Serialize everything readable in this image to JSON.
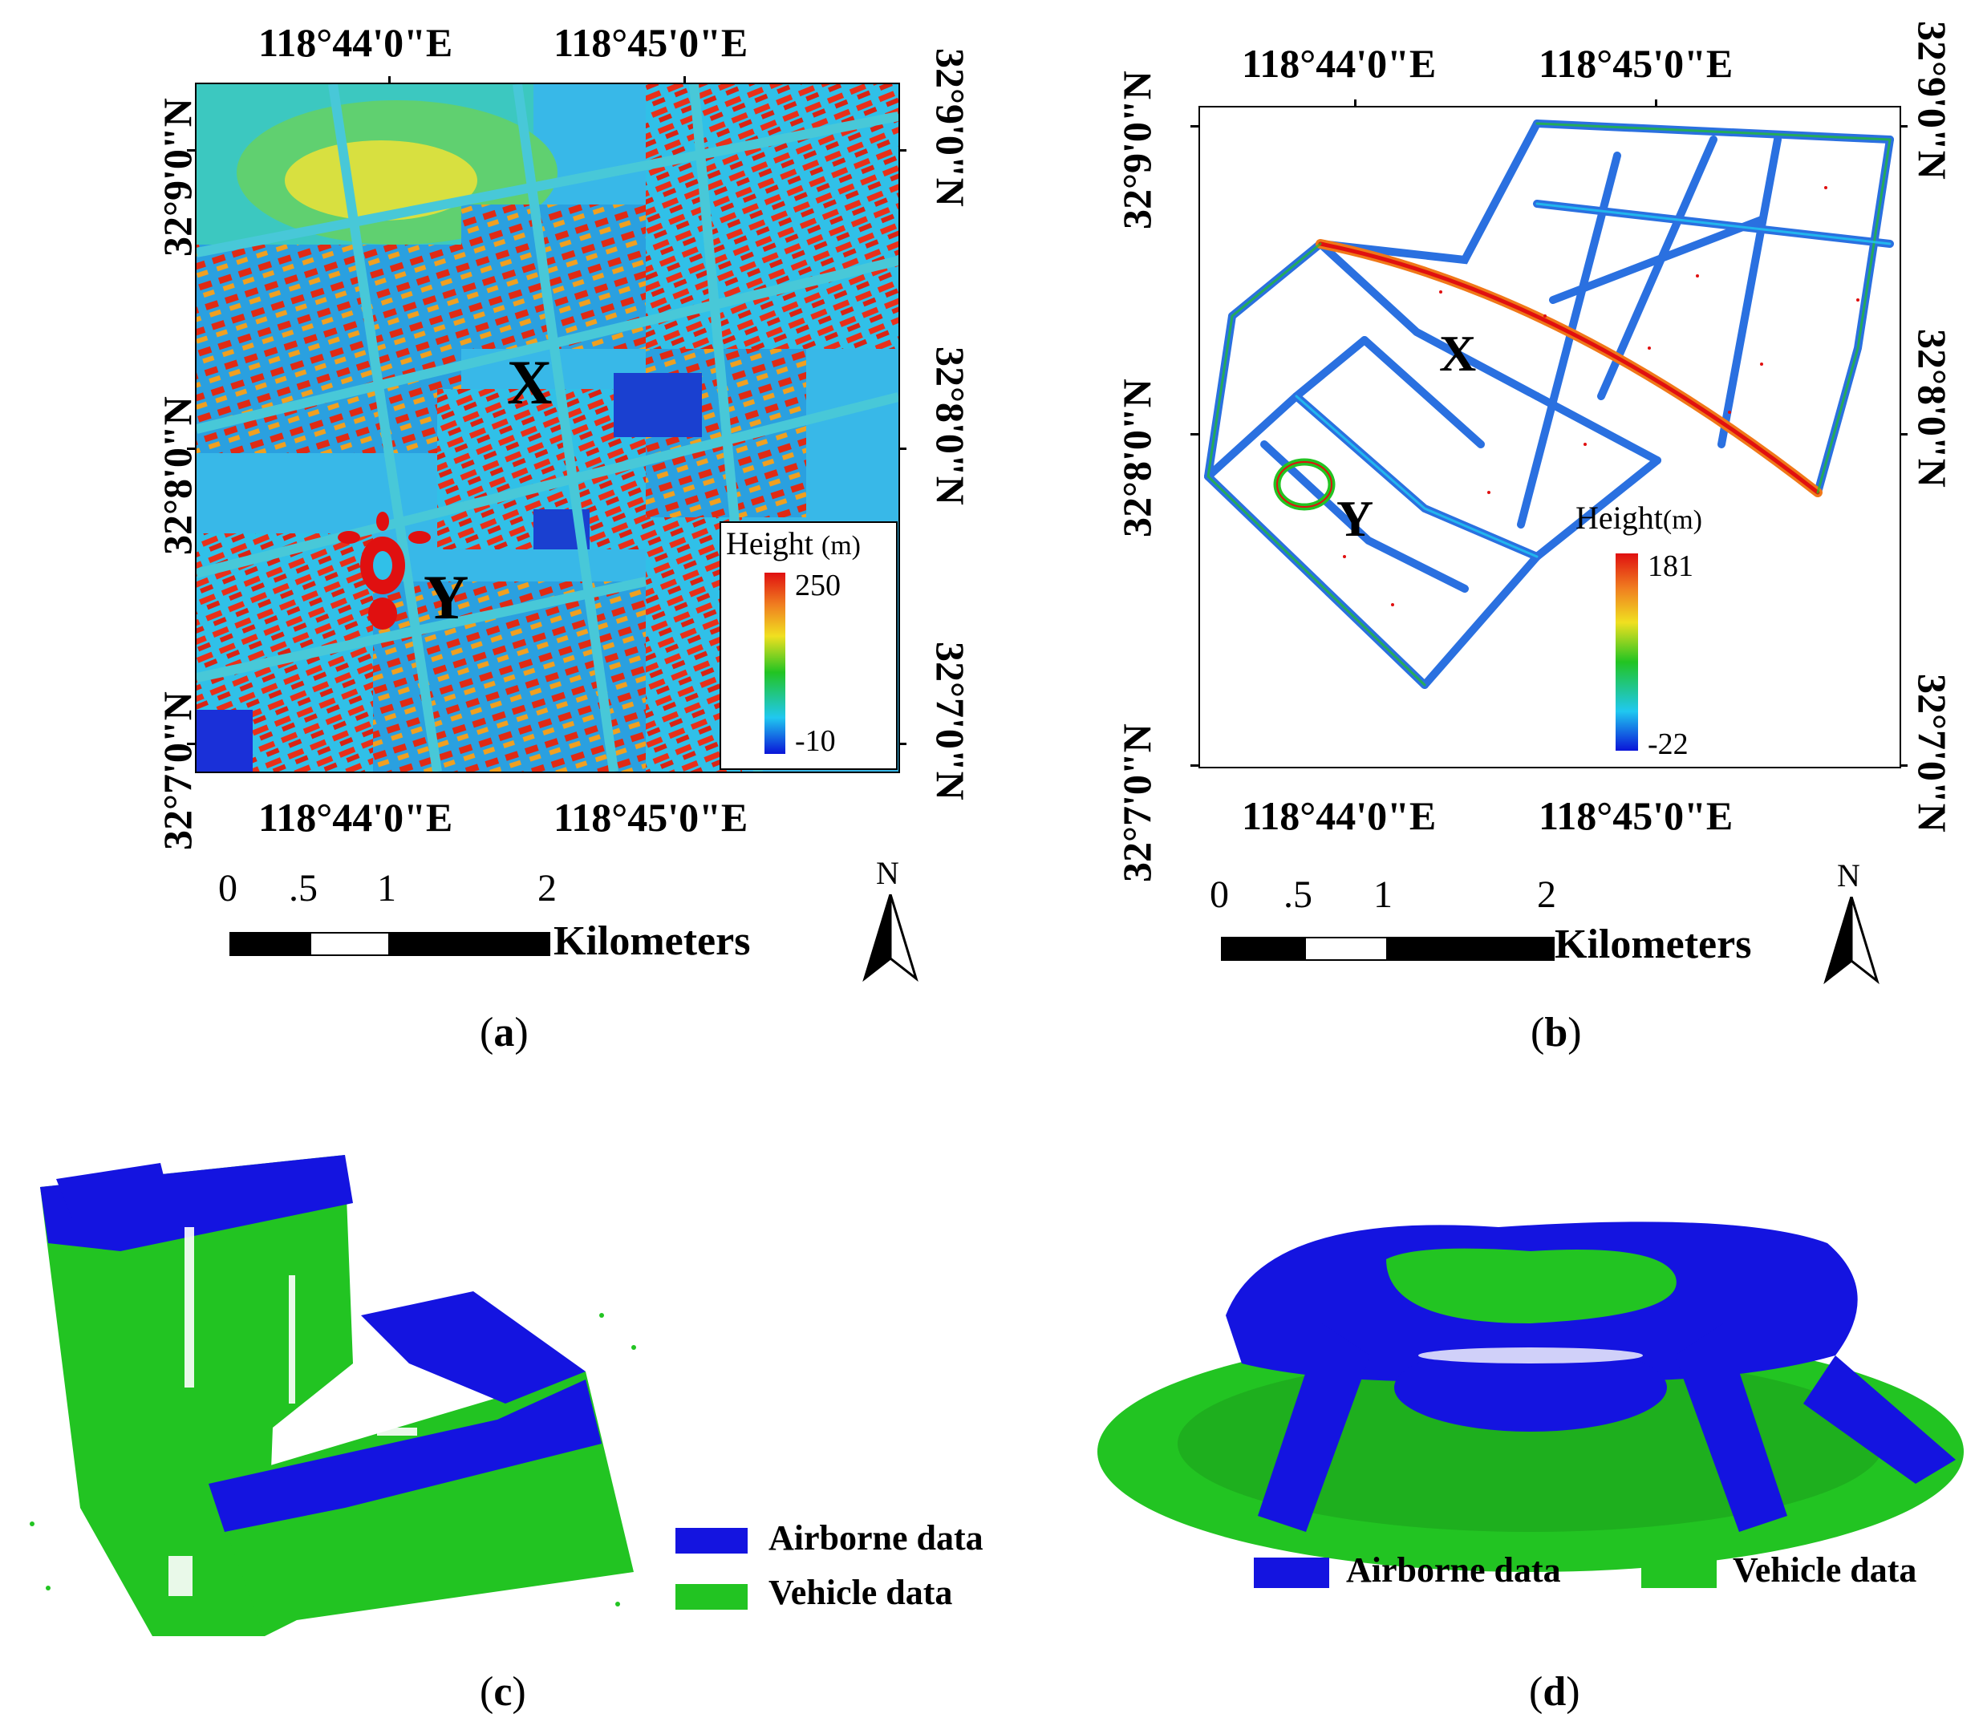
{
  "panel_a": {
    "lon_labels": [
      "118°44'0\"E",
      "118°45'0\"E"
    ],
    "lat_labels": [
      "32°9'0\"N",
      "32°8'0\"N",
      "32°7'0\"N"
    ],
    "markers": [
      "X",
      "Y"
    ],
    "legend": {
      "title": "Height",
      "unit": "(m)",
      "max": "250",
      "min": "-10"
    },
    "scale": {
      "ticks": [
        "0",
        ".5",
        "1",
        "2"
      ],
      "unit": "Kilometers"
    },
    "north": "N",
    "caption_letter": "a"
  },
  "panel_b": {
    "lon_labels": [
      "118°44'0\"E",
      "118°45'0\"E"
    ],
    "lat_labels": [
      "32°9'0\"N",
      "32°8'0\"N",
      "32°7'0\"N"
    ],
    "markers": [
      "X",
      "Y"
    ],
    "legend": {
      "title": "Height",
      "unit": "(m)",
      "max": "181",
      "min": "-22"
    },
    "scale": {
      "ticks": [
        "0",
        ".5",
        "1",
        "2"
      ],
      "unit": "Kilometers"
    },
    "north": "N",
    "caption_letter": "b"
  },
  "panel_c": {
    "legend": [
      {
        "label": "Airborne data",
        "color": "#1414e0"
      },
      {
        "label": "Vehicle data",
        "color": "#22c422"
      }
    ],
    "caption_letter": "c"
  },
  "panel_d": {
    "legend": [
      {
        "label": "Airborne data",
        "color": "#1414e0"
      },
      {
        "label": "Vehicle data",
        "color": "#22c422"
      }
    ],
    "caption_letter": "d"
  },
  "colors": {
    "airborne": "#1414e0",
    "vehicle": "#22c422",
    "height_ramp": [
      "#0a14d8",
      "#20c8f0",
      "#22c422",
      "#f0e020",
      "#f08020",
      "#e01010"
    ]
  }
}
